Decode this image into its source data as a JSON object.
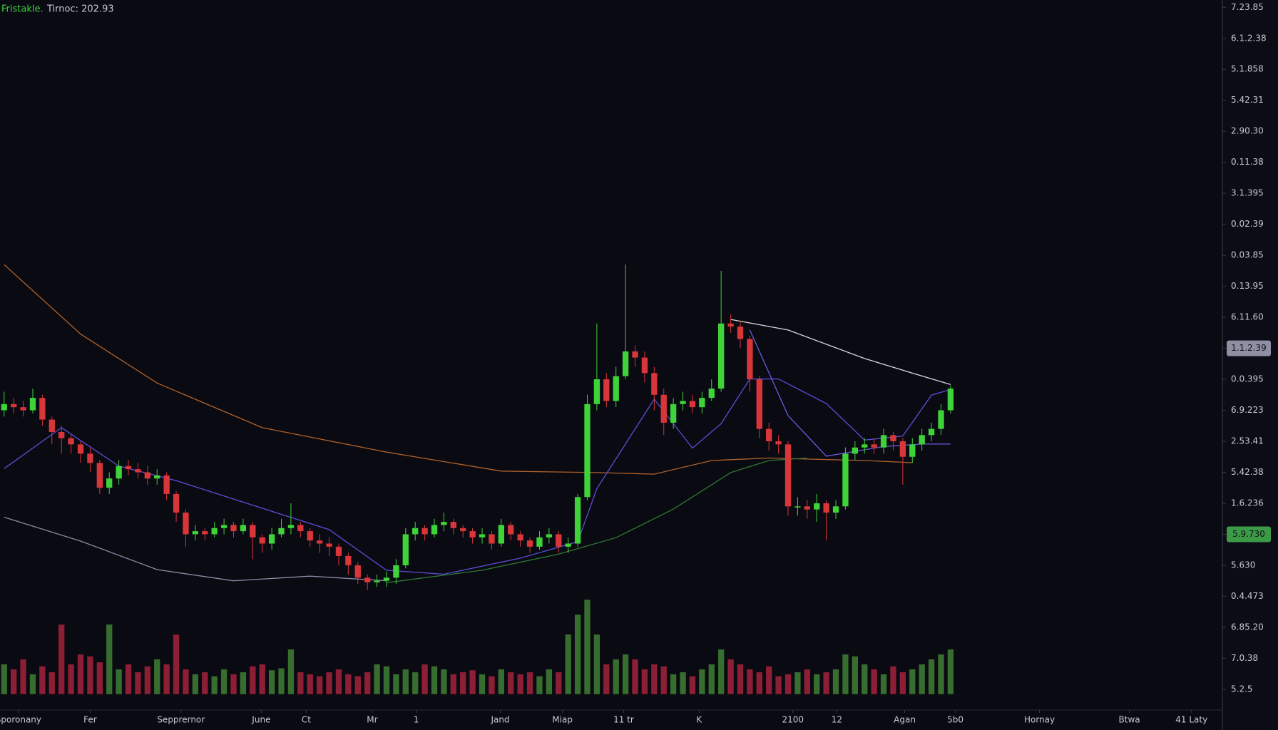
{
  "chart_data": {
    "type": "candlestick",
    "name": "Fristakle.",
    "subtitle": "Tirnoc: 202.93",
    "up_color": "#3fd33a",
    "down_color": "#d9363a",
    "volume_up_color": "#3f7f34",
    "volume_down_color": "#a3233c",
    "open": [
      9.0,
      9.2,
      9.1,
      9.0,
      9.4,
      8.7,
      8.3,
      8.1,
      7.9,
      7.6,
      7.3,
      6.5,
      6.8,
      7.2,
      7.1,
      7.0,
      6.8,
      6.9,
      6.3,
      5.7,
      5.0,
      5.1,
      5.0,
      5.2,
      5.3,
      5.1,
      5.3,
      4.9,
      4.7,
      5.0,
      5.2,
      5.3,
      5.1,
      4.8,
      4.7,
      4.6,
      4.3,
      4.0,
      3.6,
      3.45,
      3.5,
      3.6,
      4.0,
      5.0,
      5.2,
      5.0,
      5.3,
      5.4,
      5.2,
      5.1,
      4.9,
      5.0,
      4.7,
      5.3,
      5.0,
      4.8,
      4.6,
      4.9,
      5.0,
      4.6,
      4.7,
      6.2,
      9.2,
      10.0,
      9.3,
      10.1,
      10.9,
      10.7,
      10.2,
      9.5,
      8.6,
      9.2,
      9.3,
      9.1,
      9.4,
      9.7,
      11.8,
      11.7,
      11.3,
      10.0,
      8.4,
      8.0,
      7.9,
      5.9,
      5.9,
      5.8,
      6.0,
      5.7,
      5.9,
      7.6,
      7.8,
      7.9,
      7.8,
      8.2,
      8.0,
      7.5,
      7.9,
      8.2,
      8.4,
      9.0
    ],
    "high": [
      9.6,
      9.4,
      9.3,
      9.7,
      9.5,
      8.8,
      8.5,
      8.2,
      8.0,
      7.8,
      7.4,
      7.0,
      7.4,
      7.4,
      7.3,
      7.2,
      7.1,
      7.0,
      6.4,
      5.8,
      5.3,
      5.2,
      5.4,
      5.5,
      5.4,
      5.5,
      5.4,
      5.0,
      5.2,
      5.5,
      6.0,
      5.4,
      5.2,
      5.0,
      4.9,
      4.7,
      4.4,
      4.1,
      3.7,
      3.7,
      3.8,
      4.2,
      5.2,
      5.4,
      5.3,
      5.5,
      5.7,
      5.5,
      5.3,
      5.2,
      5.2,
      5.1,
      5.5,
      5.4,
      5.1,
      4.9,
      5.1,
      5.2,
      5.1,
      4.9,
      6.3,
      9.5,
      11.8,
      10.2,
      10.4,
      13.7,
      11.1,
      10.9,
      10.4,
      9.7,
      9.4,
      9.6,
      9.5,
      9.6,
      10.0,
      13.5,
      12.1,
      11.9,
      11.4,
      10.1,
      8.6,
      8.2,
      8.0,
      6.2,
      6.1,
      6.3,
      6.1,
      6.1,
      7.8,
      8.0,
      8.1,
      8.1,
      8.4,
      8.3,
      8.1,
      8.1,
      8.4,
      8.6,
      9.2,
      9.8
    ],
    "low": [
      8.8,
      8.9,
      8.8,
      8.9,
      8.5,
      7.9,
      7.6,
      7.6,
      7.3,
      7.0,
      6.3,
      6.3,
      6.6,
      6.9,
      6.8,
      6.6,
      6.6,
      6.1,
      5.4,
      4.6,
      4.8,
      4.8,
      4.9,
      5.0,
      4.9,
      5.0,
      4.2,
      4.4,
      4.5,
      4.9,
      5.0,
      4.9,
      4.6,
      4.4,
      4.3,
      4.0,
      3.7,
      3.4,
      3.2,
      3.3,
      3.3,
      3.4,
      3.9,
      4.8,
      4.8,
      4.9,
      5.1,
      5.0,
      4.9,
      4.7,
      4.7,
      4.5,
      4.6,
      4.8,
      4.6,
      4.4,
      4.5,
      4.7,
      4.4,
      4.4,
      4.6,
      6.1,
      9.0,
      9.1,
      9.1,
      10.0,
      10.4,
      9.9,
      9.0,
      8.2,
      8.4,
      9.0,
      8.9,
      8.9,
      9.3,
      9.6,
      11.5,
      11.0,
      9.6,
      8.1,
      7.7,
      7.6,
      5.6,
      5.6,
      5.5,
      5.4,
      4.8,
      5.5,
      5.8,
      7.4,
      7.6,
      7.6,
      7.6,
      7.7,
      6.6,
      7.3,
      7.7,
      8.0,
      8.2,
      8.9
    ],
    "close": [
      9.2,
      9.1,
      9.0,
      9.4,
      8.7,
      8.3,
      8.1,
      7.9,
      7.6,
      7.3,
      6.5,
      6.8,
      7.2,
      7.1,
      7.0,
      6.8,
      6.9,
      6.3,
      5.7,
      5.0,
      5.1,
      5.0,
      5.2,
      5.3,
      5.1,
      5.3,
      4.9,
      4.7,
      5.0,
      5.2,
      5.3,
      5.1,
      4.8,
      4.7,
      4.6,
      4.3,
      4.0,
      3.6,
      3.45,
      3.5,
      3.6,
      4.0,
      5.0,
      5.2,
      5.0,
      5.3,
      5.4,
      5.2,
      5.1,
      4.9,
      5.0,
      4.7,
      5.3,
      5.0,
      4.8,
      4.6,
      4.9,
      5.0,
      4.6,
      4.7,
      6.2,
      9.2,
      10.0,
      9.3,
      10.1,
      10.9,
      10.7,
      10.2,
      9.5,
      8.6,
      9.2,
      9.3,
      9.1,
      9.4,
      9.7,
      11.8,
      11.7,
      11.3,
      10.0,
      8.4,
      8.0,
      7.9,
      5.9,
      5.9,
      5.8,
      6.0,
      5.7,
      5.9,
      7.6,
      7.8,
      7.9,
      7.8,
      8.2,
      8.0,
      7.5,
      7.9,
      8.2,
      8.4,
      9.0,
      9.7
    ],
    "volume": {
      "axis": "y2",
      "values": [
        30,
        25,
        35,
        20,
        28,
        22,
        70,
        30,
        40,
        38,
        32,
        70,
        25,
        30,
        22,
        28,
        35,
        30,
        60,
        25,
        20,
        22,
        18,
        25,
        20,
        22,
        28,
        30,
        24,
        26,
        45,
        22,
        20,
        18,
        22,
        25,
        20,
        18,
        22,
        30,
        28,
        20,
        25,
        22,
        30,
        28,
        25,
        20,
        22,
        24,
        20,
        18,
        25,
        22,
        20,
        22,
        18,
        25,
        22,
        60,
        80,
        95,
        60,
        30,
        35,
        40,
        35,
        25,
        30,
        28,
        20,
        22,
        18,
        25,
        30,
        45,
        35,
        30,
        25,
        22,
        28,
        18,
        20,
        22,
        25,
        20,
        22,
        25,
        40,
        38,
        30,
        25,
        20,
        28,
        22,
        25,
        30,
        35,
        40,
        45
      ]
    },
    "lines": [
      {
        "color": "#8a8aa6",
        "x": [
          0,
          8,
          16,
          24,
          32,
          40
        ],
        "values": [
          5.55,
          4.78,
          3.86,
          3.5,
          3.65,
          3.5
        ]
      },
      {
        "color": "#b0622a",
        "x": [
          0,
          8,
          16,
          27,
          40,
          52,
          62,
          68,
          74,
          80,
          90,
          95
        ],
        "values": [
          13.7,
          11.46,
          9.88,
          8.44,
          7.65,
          7.04,
          6.99,
          6.94,
          7.38,
          7.46,
          7.38,
          7.31
        ]
      },
      {
        "color": "#5a4fd8",
        "x": [
          0,
          6,
          12,
          18,
          26,
          34,
          40,
          46,
          54,
          60,
          62,
          68,
          72,
          75,
          78,
          81,
          86,
          90,
          94,
          97,
          99
        ],
        "values": [
          7.12,
          8.44,
          7.2,
          6.73,
          5.94,
          5.15,
          3.84,
          3.71,
          4.23,
          4.76,
          6.47,
          9.36,
          7.78,
          8.57,
          10.01,
          10.01,
          9.22,
          8.04,
          8.17,
          9.49,
          9.67
        ]
      },
      {
        "color": "#6a5be0",
        "x": [
          78,
          82,
          86,
          92,
          96,
          99
        ],
        "values": [
          11.59,
          8.83,
          7.52,
          7.83,
          7.91,
          7.91
        ]
      },
      {
        "color": "#2f7a34",
        "x": [
          40,
          50,
          58,
          64,
          70,
          76,
          80,
          84
        ],
        "values": [
          3.44,
          3.84,
          4.36,
          4.89,
          5.81,
          6.99,
          7.38,
          7.46
        ]
      },
      {
        "color": "#d8d8e0",
        "x": [
          76,
          82,
          90,
          95,
          99
        ],
        "values": [
          11.93,
          11.59,
          10.67,
          10.2,
          9.83
        ]
      }
    ],
    "xlim": [
      -0.43,
      127.45
    ],
    "ylim": [
      0,
      22
    ],
    "y2lim": [
      0,
      100
    ],
    "xticks": [
      {
        "value": 1.5,
        "label": "Sporonany"
      },
      {
        "value": 9.0,
        "label": "Fer"
      },
      {
        "value": 18.5,
        "label": "Sepprernor"
      },
      {
        "value": 26.9,
        "label": "June"
      },
      {
        "value": 31.6,
        "label": "Ct"
      },
      {
        "value": 38.5,
        "label": "Mr"
      },
      {
        "value": 43.1,
        "label": "1"
      },
      {
        "value": 51.9,
        "label": "Jand"
      },
      {
        "value": 58.4,
        "label": "Miap"
      },
      {
        "value": 64.8,
        "label": "11 tr"
      },
      {
        "value": 72.7,
        "label": "K"
      },
      {
        "value": 82.5,
        "label": "2100"
      },
      {
        "value": 87.1,
        "label": "12"
      },
      {
        "value": 94.2,
        "label": "Agan"
      },
      {
        "value": 99.5,
        "label": "5b0"
      },
      {
        "value": 108.3,
        "label": "Hornay"
      },
      {
        "value": 117.7,
        "label": "Btwa"
      },
      {
        "value": 124.2,
        "label": "41 Laty"
      }
    ],
    "yticks": [
      {
        "value": 0,
        "label": "5.2.5"
      },
      {
        "value": 1,
        "label": "7.0.38"
      },
      {
        "value": 2,
        "label": "6.85.20"
      },
      {
        "value": 3,
        "label": "0.4.473"
      },
      {
        "value": 4,
        "label": "5.630"
      },
      {
        "value": 5,
        "label": "5.9.730"
      },
      {
        "value": 6,
        "label": "1.6.236"
      },
      {
        "value": 7,
        "label": "5.42.38"
      },
      {
        "value": 8,
        "label": "2.53.41"
      },
      {
        "value": 9,
        "label": "6.9.223"
      },
      {
        "value": 10,
        "label": "0.0.395"
      },
      {
        "value": 11,
        "label": "1.1.2.39"
      },
      {
        "value": 12,
        "label": "6.11.60"
      },
      {
        "value": 13,
        "label": "0.13.95"
      },
      {
        "value": 14,
        "label": "0.03.85"
      },
      {
        "value": 15,
        "label": "0.02.39"
      },
      {
        "value": 16,
        "label": "3.1.395"
      },
      {
        "value": 17,
        "label": "0.11.38"
      },
      {
        "value": 18,
        "label": "2.90.30"
      },
      {
        "value": 19,
        "label": "5.42.31"
      },
      {
        "value": 20,
        "label": "5.1.858"
      },
      {
        "value": 21,
        "label": "6.1.2.38"
      },
      {
        "value": 22,
        "label": "7.23.85"
      }
    ],
    "tick_boxes": [
      {
        "tick": 11,
        "color": "#8e8fa3"
      },
      {
        "tick": 5,
        "color": "#3c9a47"
      }
    ],
    "grid": false
  }
}
